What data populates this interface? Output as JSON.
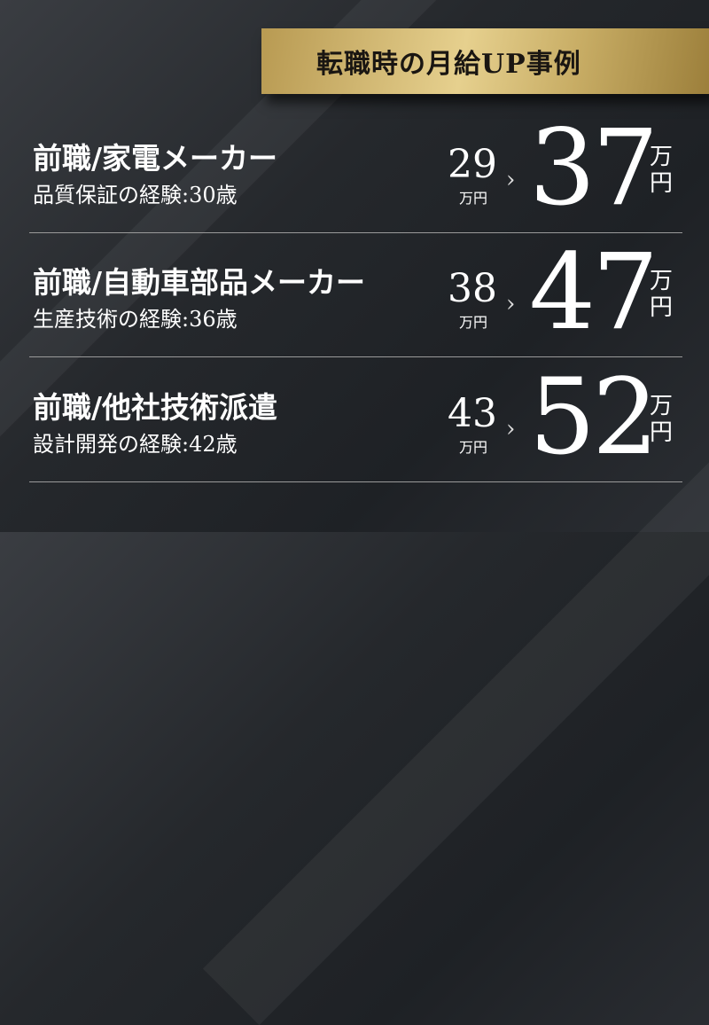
{
  "heading": "転職時の月給UP事例",
  "colors": {
    "gold": "#d6bd77",
    "background": "#25282c"
  },
  "cases": [
    {
      "title": "前職/家電メーカー",
      "subtitle": "品質保証の経験:30歳",
      "before": "29",
      "before_unit": "万円",
      "arrow": "›",
      "after": "37",
      "after_unit_top": "万",
      "after_unit_bottom": "円"
    },
    {
      "title": "前職/自動車部品メーカー",
      "subtitle": "生産技術の経験:36歳",
      "before": "38",
      "before_unit": "万円",
      "arrow": "›",
      "after": "47",
      "after_unit_top": "万",
      "after_unit_bottom": "円"
    },
    {
      "title": "前職/他社技術派遣",
      "subtitle": "設計開発の経験:42歳",
      "before": "43",
      "before_unit": "万円",
      "arrow": "›",
      "after": "52",
      "after_unit_top": "万",
      "after_unit_bottom": "円"
    }
  ]
}
